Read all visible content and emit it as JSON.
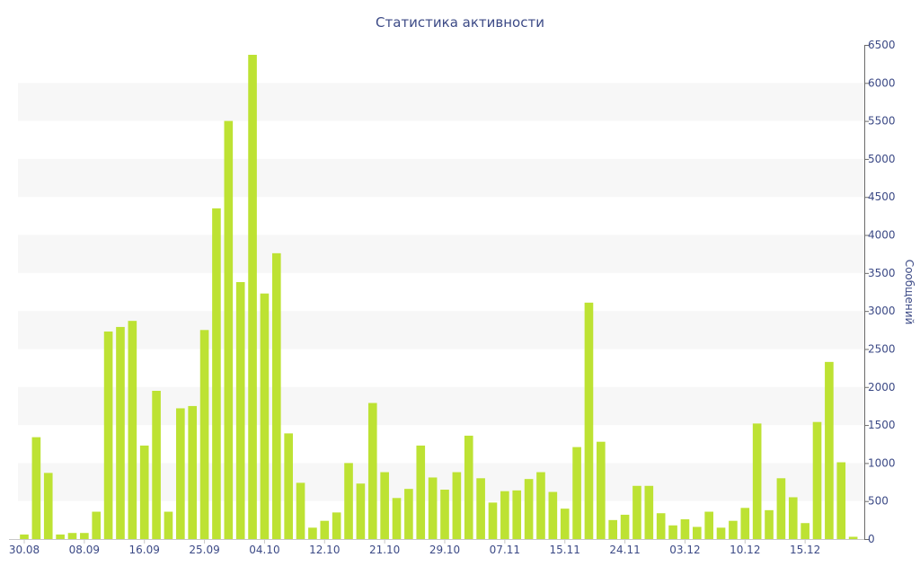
{
  "chart_data": {
    "type": "bar",
    "title": "Статистика активности",
    "ylabel": "Сообщений",
    "ylim": [
      0,
      6500
    ],
    "yticks": [
      0,
      500,
      1000,
      1500,
      2000,
      2500,
      3000,
      3500,
      4000,
      4500,
      5000,
      5500,
      6000,
      6500
    ],
    "x_tick_labels": [
      {
        "index": 0,
        "label": "30.08"
      },
      {
        "index": 5,
        "label": "08.09"
      },
      {
        "index": 10,
        "label": "16.09"
      },
      {
        "index": 15,
        "label": "25.09"
      },
      {
        "index": 20,
        "label": "04.10"
      },
      {
        "index": 25,
        "label": "12.10"
      },
      {
        "index": 30,
        "label": "21.10"
      },
      {
        "index": 35,
        "label": "29.10"
      },
      {
        "index": 40,
        "label": "07.11"
      },
      {
        "index": 45,
        "label": "15.11"
      },
      {
        "index": 50,
        "label": "24.11"
      },
      {
        "index": 55,
        "label": "03.12"
      },
      {
        "index": 60,
        "label": "10.12"
      },
      {
        "index": 65,
        "label": "15.12"
      }
    ],
    "values": [
      60,
      1340,
      870,
      60,
      80,
      80,
      360,
      2730,
      2790,
      2870,
      1230,
      1950,
      360,
      1720,
      1750,
      2750,
      4350,
      5500,
      3380,
      6370,
      3230,
      3760,
      1390,
      740,
      150,
      240,
      350,
      1000,
      730,
      1790,
      880,
      540,
      660,
      1230,
      810,
      650,
      880,
      1360,
      800,
      480,
      630,
      640,
      790,
      880,
      620,
      400,
      1210,
      3110,
      1280,
      250,
      320,
      700,
      700,
      340,
      180,
      260,
      160,
      360,
      150,
      240,
      410,
      1520,
      380,
      800,
      550,
      210,
      1540,
      2330,
      1010,
      30
    ],
    "grid": "alternating horizontal bands",
    "colors": {
      "bar": "#bde233",
      "band": "#f7f7f7",
      "text": "#3c4a86",
      "axis": "#6b6b6b"
    }
  }
}
